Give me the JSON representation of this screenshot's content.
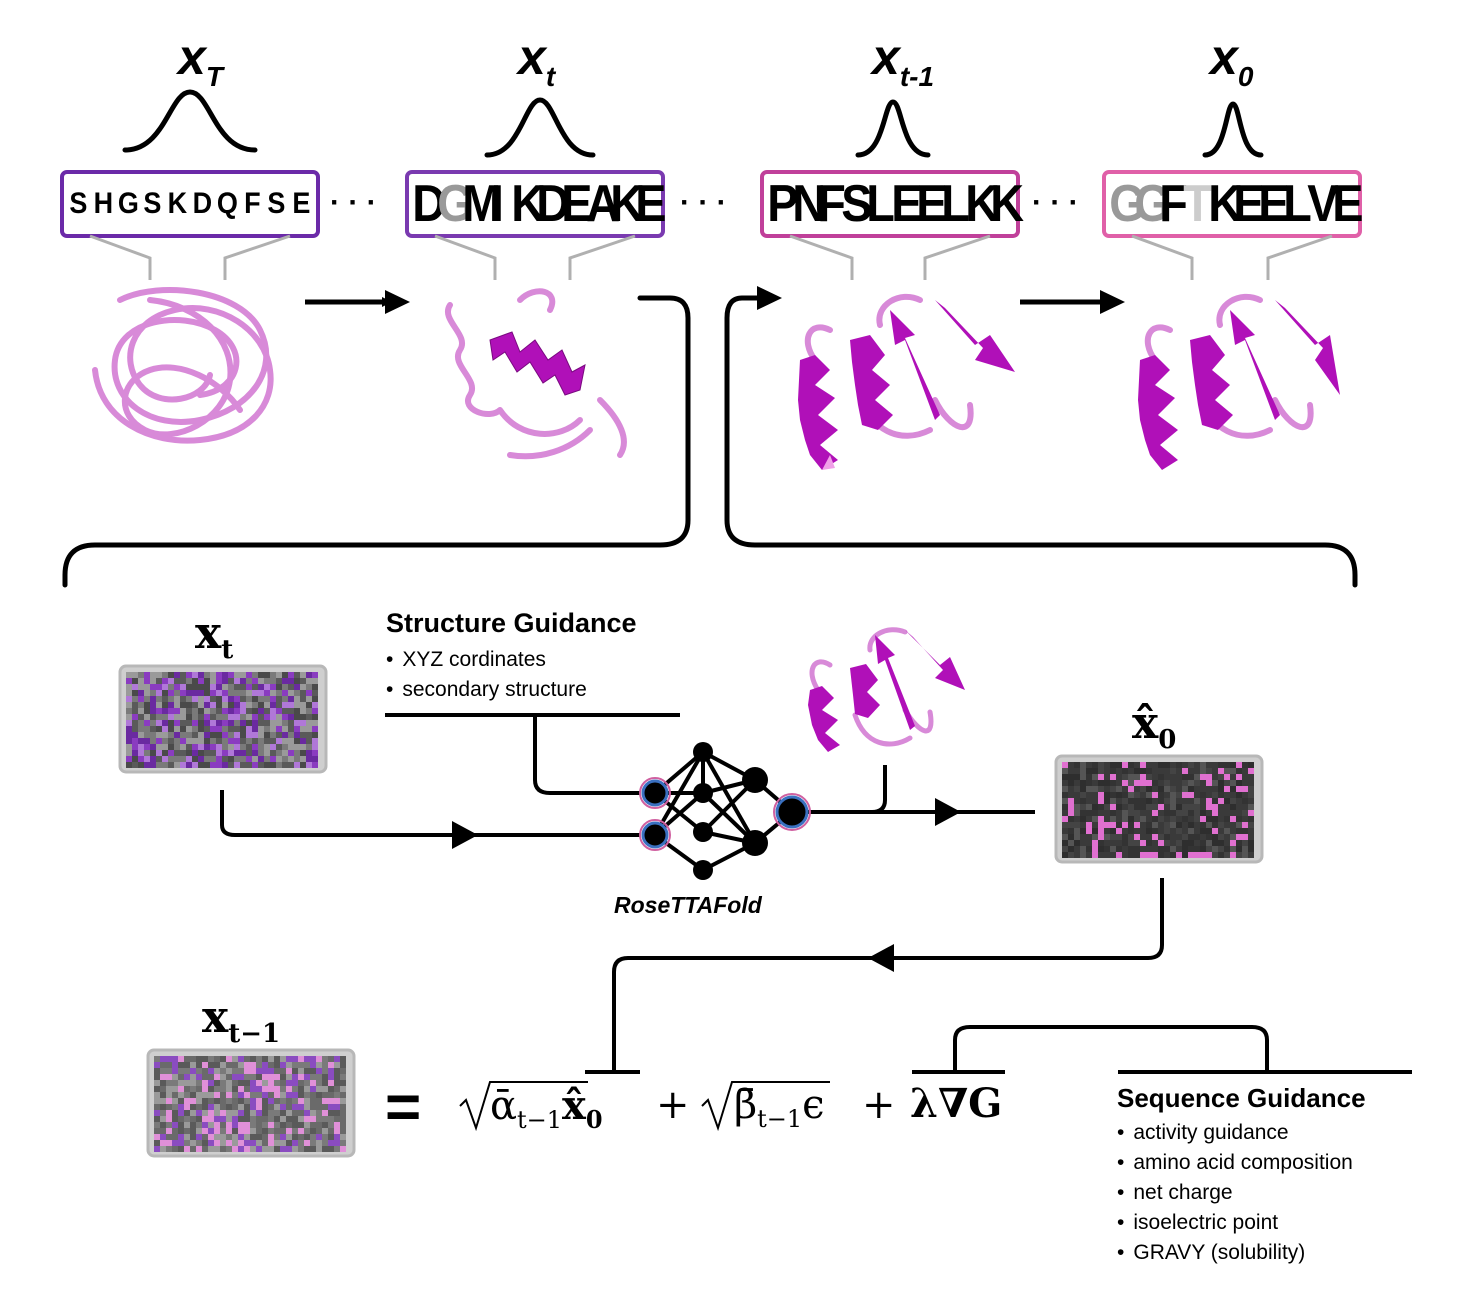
{
  "stages": [
    {
      "label": "x",
      "sub": "T",
      "logo": "SHGSKDQFSE",
      "border": "#6b2aa8"
    },
    {
      "label": "x",
      "sub": "t",
      "logo": "DGMIKDEAKE",
      "border": "#7a3ab0"
    },
    {
      "label": "x",
      "sub": "t-1",
      "logo": "PNFSLEELKK",
      "border": "#c0409a"
    },
    {
      "label": "x",
      "sub": "0",
      "logo": "GGFTKEELVE",
      "border": "#e060a8"
    }
  ],
  "ellipsis": "· · ·",
  "detail": {
    "xt": {
      "base": "x",
      "sub": "t"
    },
    "x0hat": {
      "base": "x̂",
      "sub": "0"
    },
    "xtm1": {
      "base": "x",
      "sub": "t−1"
    }
  },
  "structure_guidance": {
    "title": "Structure Guidance",
    "items": [
      "XYZ cordinates",
      "secondary structure"
    ]
  },
  "model_label": "RoseTTAFold",
  "equation": {
    "equals": "=",
    "term1_root": "ᾱ",
    "term1_sub": "t−1",
    "term1_out": "x̂",
    "term1_out_sub": "0",
    "plus": "+",
    "term2_root": "β̄",
    "term2_sub": "t−1",
    "term2_out": "ϵ",
    "term3": "λ∇G"
  },
  "sequence_guidance": {
    "title": "Sequence Guidance",
    "items": [
      "activity guidance",
      "amino acid composition",
      "net charge",
      "isoelectric point",
      "GRAVY (solubility)"
    ]
  },
  "colors": {
    "purple": "#7a3ab8",
    "magenta": "#b010b8",
    "pink": "#d070d8",
    "light_pink": "#f0a0e8",
    "node_blue": "#3a70c0",
    "node_pink": "#d060a0",
    "frame_gray": "#b8b8b8"
  }
}
